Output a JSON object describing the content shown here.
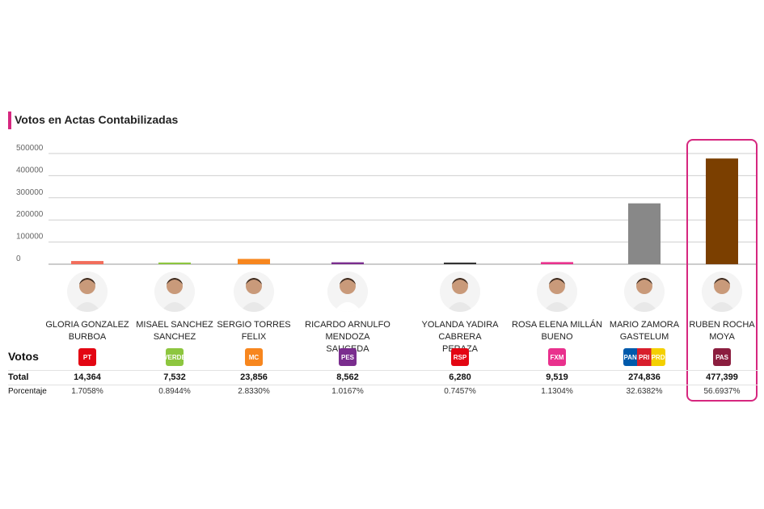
{
  "title": "Votos en Actas Contabilizadas",
  "row_labels": {
    "votos": "Votos",
    "total": "Total",
    "porcentaje": "Porcentaje"
  },
  "chart_data": {
    "type": "bar",
    "title": "Votos en Actas Contabilizadas",
    "xlabel": "",
    "ylabel": "",
    "ylim": [
      0,
      500000
    ],
    "yticks": [
      "500000",
      "400000",
      "300000",
      "200000",
      "100000",
      "0"
    ],
    "grid": true,
    "categories": [
      "GLORIA GONZALEZ BURBOA",
      "MISAEL SANCHEZ SANCHEZ",
      "SERGIO TORRES FELIX",
      "RICARDO ARNULFO MENDOZA SAUCEDA",
      "YOLANDA YADIRA CABRERA PERAZA",
      "ROSA ELENA MILLÁN BUENO",
      "MARIO ZAMORA GASTELUM",
      "RUBEN ROCHA MOYA"
    ],
    "values": [
      14364,
      7532,
      23856,
      8562,
      6280,
      9519,
      274836,
      477399
    ],
    "colors": [
      "#f26d5b",
      "#8dc63f",
      "#f7861e",
      "#7a2d8e",
      "#333333",
      "#e9318d",
      "#888888",
      "#7b3f00"
    ]
  },
  "candidates": [
    {
      "name_line1": "GLORIA GONZALEZ",
      "name_line2": "BURBOA",
      "party": "PT",
      "party_color": "#e30613",
      "total": "14,364",
      "pct": "1.7058%"
    },
    {
      "name_line1": "MISAEL SANCHEZ",
      "name_line2": "SANCHEZ",
      "party": "VERDE",
      "party_color": "#8dc63f",
      "total": "7,532",
      "pct": "0.8944%"
    },
    {
      "name_line1": "SERGIO TORRES",
      "name_line2": "FELIX",
      "party": "MC",
      "party_color": "#f7861e",
      "total": "23,856",
      "pct": "2.8330%"
    },
    {
      "name_line1": "RICARDO ARNULFO MENDOZA",
      "name_line2": "SAUCEDA",
      "party": "PES",
      "party_color": "#7a2d8e",
      "total": "8,562",
      "pct": "1.0167%"
    },
    {
      "name_line1": "YOLANDA YADIRA CABRERA",
      "name_line2": "PERAZA",
      "party": "RSP",
      "party_color": "#e30613",
      "total": "6,280",
      "pct": "0.7457%"
    },
    {
      "name_line1": "ROSA ELENA MILLÁN",
      "name_line2": "BUENO",
      "party": "FXM",
      "party_color": "#e9318d",
      "total": "9,519",
      "pct": "1.1304%"
    },
    {
      "name_line1": "MARIO ZAMORA",
      "name_line2": "GASTELUM",
      "party": "PAN PRI PRD",
      "party_color": "#005aab",
      "total": "274,836",
      "pct": "32.6382%"
    },
    {
      "name_line1": "RUBEN ROCHA",
      "name_line2": "MOYA",
      "party": "PAS",
      "party_color": "#8b1e3f",
      "total": "477,399",
      "pct": "56.6937%"
    }
  ]
}
